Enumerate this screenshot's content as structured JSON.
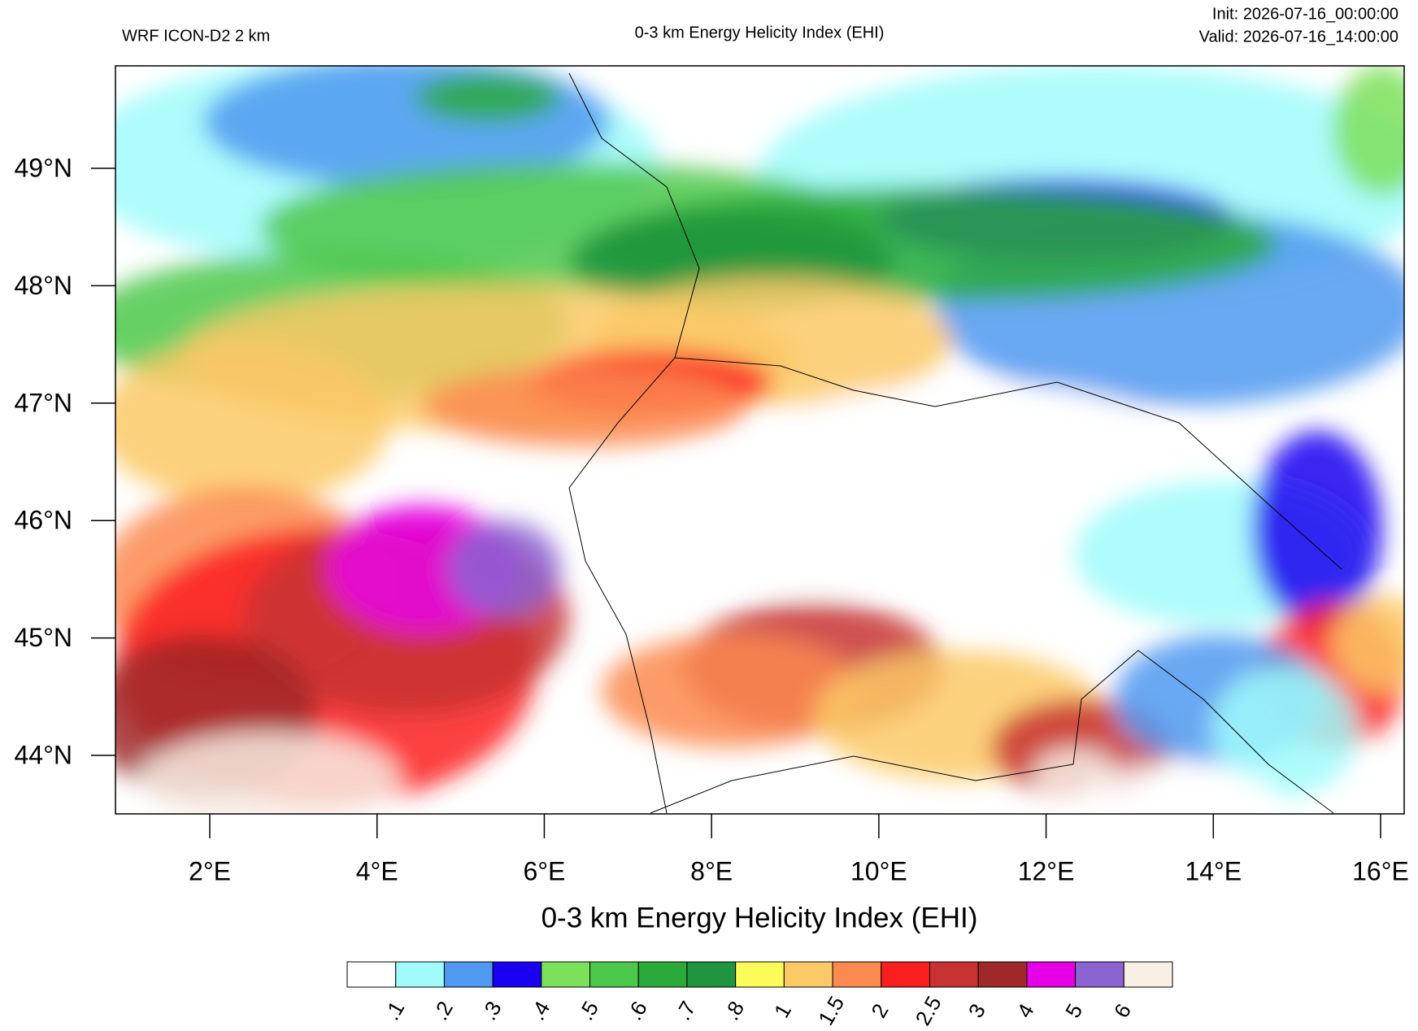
{
  "header": {
    "model": "WRF ICON-D2 2 km",
    "title": "0-3 km Energy Helicity Index (EHI)",
    "init": "Init: 2026-07-16_00:00:00",
    "valid": "Valid: 2026-07-16_14:00:00"
  },
  "map": {
    "lat_ticks": [
      {
        "value": 49,
        "label": "49°N"
      },
      {
        "value": 48,
        "label": "48°N"
      },
      {
        "value": 47,
        "label": "47°N"
      },
      {
        "value": 46,
        "label": "46°N"
      },
      {
        "value": 45,
        "label": "45°N"
      },
      {
        "value": 44,
        "label": "44°N"
      }
    ],
    "lon_ticks": [
      {
        "value": 2,
        "label": "2°E"
      },
      {
        "value": 4,
        "label": "4°E"
      },
      {
        "value": 6,
        "label": "6°E"
      },
      {
        "value": 8,
        "label": "8°E"
      },
      {
        "value": 10,
        "label": "10°E"
      },
      {
        "value": 12,
        "label": "12°E"
      },
      {
        "value": 14,
        "label": "14°E"
      },
      {
        "value": 16,
        "label": "16°E"
      }
    ],
    "axis_label": "0-3 km Energy Helicity Index (EHI)"
  },
  "colorbar": {
    "colors": [
      "#ffffff",
      "#a0fcfc",
      "#4f99f0",
      "#1a00f0",
      "#7de05a",
      "#4cc84a",
      "#2aaa3a",
      "#1f9540",
      "#fbfb5a",
      "#fbc966",
      "#fb8a50",
      "#fb1e1e",
      "#c83232",
      "#a02828",
      "#e600e6",
      "#8c64d2",
      "#f8efe5"
    ],
    "labels": [
      ".1",
      ".2",
      ".3",
      ".4",
      ".5",
      ".6",
      ".7",
      ".8",
      "1",
      "1.5",
      "2",
      "2.5",
      "3",
      "4",
      "5",
      "6"
    ]
  }
}
